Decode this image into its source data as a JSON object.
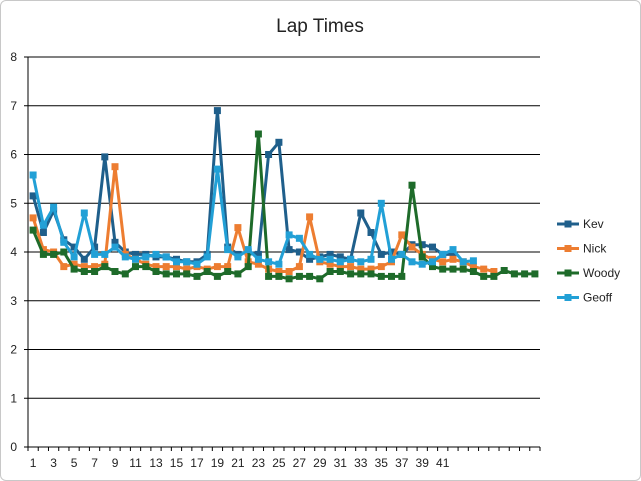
{
  "chart_data": {
    "type": "line",
    "title": "Lap Times",
    "xlabel": "",
    "ylabel": "",
    "ylim": [
      0,
      8
    ],
    "yticks": [
      0,
      1,
      2,
      3,
      4,
      5,
      6,
      7,
      8
    ],
    "xticks": [
      1,
      3,
      5,
      7,
      9,
      11,
      13,
      15,
      17,
      19,
      21,
      23,
      25,
      27,
      29,
      31,
      33,
      35,
      37,
      39,
      41
    ],
    "x_count": 50,
    "grid": true,
    "legend": "right",
    "series": [
      {
        "name": "Kev",
        "color": "#1f5f8b",
        "values": [
          5.15,
          4.4,
          4.85,
          4.25,
          4.1,
          3.85,
          4.1,
          5.95,
          4.2,
          4.0,
          3.95,
          3.95,
          3.9,
          3.9,
          3.85,
          3.8,
          3.8,
          3.95,
          6.9,
          4.1,
          3.95,
          4.0,
          3.95,
          6.0,
          6.25,
          4.05,
          4.0,
          3.85,
          3.9,
          3.95,
          3.9,
          3.85,
          4.8,
          4.4,
          3.95,
          4.0,
          3.95,
          4.15,
          4.15,
          4.1,
          3.95,
          3.95,
          null,
          null,
          null,
          null,
          null,
          null,
          null,
          null
        ]
      },
      {
        "name": "Nick",
        "color": "#ed7d31",
        "values": [
          4.7,
          4.05,
          4.0,
          3.7,
          3.75,
          3.7,
          3.7,
          3.75,
          5.75,
          3.95,
          3.85,
          3.75,
          3.7,
          3.7,
          3.7,
          3.65,
          3.7,
          3.65,
          3.7,
          3.7,
          4.5,
          3.8,
          3.75,
          3.65,
          3.6,
          3.6,
          3.7,
          4.72,
          3.8,
          3.75,
          3.7,
          3.7,
          3.65,
          3.65,
          3.7,
          3.8,
          4.35,
          4.1,
          3.95,
          3.85,
          3.8,
          3.85,
          3.8,
          3.7,
          3.65,
          3.6,
          null,
          null,
          null,
          null
        ]
      },
      {
        "name": "Woody",
        "color": "#1e6b2a",
        "values": [
          4.45,
          3.95,
          3.95,
          4.0,
          3.65,
          3.6,
          3.6,
          3.7,
          3.6,
          3.55,
          3.7,
          3.7,
          3.6,
          3.55,
          3.55,
          3.55,
          3.5,
          3.6,
          3.5,
          3.6,
          3.55,
          3.7,
          6.42,
          3.5,
          3.5,
          3.45,
          3.5,
          3.5,
          3.45,
          3.6,
          3.6,
          3.55,
          3.55,
          3.55,
          3.5,
          3.5,
          3.5,
          5.37,
          3.9,
          3.7,
          3.65,
          3.65,
          3.65,
          3.6,
          3.5,
          3.5,
          3.62,
          3.55,
          3.55,
          3.55
        ]
      },
      {
        "name": "Geoff",
        "color": "#22a0d6",
        "values": [
          5.58,
          4.55,
          4.92,
          4.2,
          3.9,
          4.8,
          3.95,
          3.95,
          4.1,
          3.9,
          3.85,
          3.9,
          3.95,
          3.9,
          3.8,
          3.8,
          3.75,
          3.9,
          5.7,
          4.05,
          3.9,
          4.05,
          3.85,
          3.8,
          3.75,
          4.35,
          4.28,
          3.95,
          3.85,
          3.85,
          3.8,
          3.85,
          3.8,
          3.85,
          5.0,
          3.85,
          3.95,
          3.8,
          3.75,
          3.8,
          3.95,
          4.05,
          3.8,
          3.82,
          null,
          null,
          null,
          null,
          null,
          null
        ]
      }
    ]
  }
}
